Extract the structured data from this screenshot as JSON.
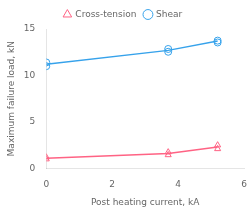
{
  "chart_data": {
    "type": "line",
    "xlabel": "Post heating current, kA",
    "ylabel": "Maximum failure load, kN",
    "xlim": [
      0,
      6
    ],
    "ylim": [
      0,
      15
    ],
    "xticks": [
      0,
      2,
      4,
      6
    ],
    "yticks": [
      0,
      5,
      10,
      15
    ],
    "grid": false,
    "legend": "top",
    "series": [
      {
        "name": "Shear",
        "marker": "circle",
        "x": [
          0,
          3.7,
          5.2
        ],
        "values": [
          11.2,
          12.7,
          13.7
        ],
        "scatter": [
          [
            11.0,
            11.4
          ],
          [
            12.55,
            12.85
          ],
          [
            13.55,
            13.75
          ]
        ]
      },
      {
        "name": "Cross-tension",
        "marker": "triangle",
        "x": [
          0,
          3.7,
          5.2
        ],
        "values": [
          1.1,
          1.6,
          2.3
        ],
        "scatter": [
          [
            1.0,
            1.2
          ],
          [
            1.45,
            1.75
          ],
          [
            2.1,
            2.5
          ]
        ]
      }
    ]
  }
}
